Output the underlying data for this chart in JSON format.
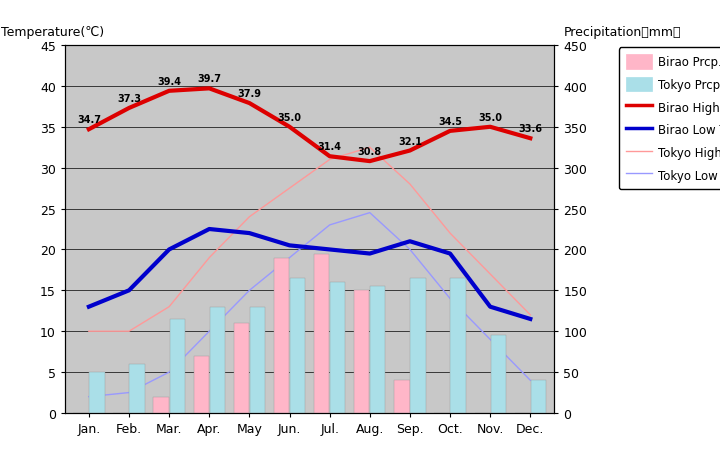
{
  "months": [
    "Jan.",
    "Feb.",
    "Mar.",
    "Apr.",
    "May",
    "Jun.",
    "Jul.",
    "Aug.",
    "Sep.",
    "Oct.",
    "Nov.",
    "Dec."
  ],
  "birao_high": [
    34.7,
    37.3,
    39.4,
    39.7,
    37.9,
    35.0,
    31.4,
    30.8,
    32.1,
    34.5,
    35.0,
    33.6
  ],
  "birao_low": [
    13.0,
    15.0,
    20.0,
    22.5,
    22.0,
    20.5,
    20.0,
    19.5,
    21.0,
    19.5,
    13.0,
    11.5
  ],
  "tokyo_high": [
    10.0,
    10.0,
    13.0,
    19.0,
    24.0,
    27.5,
    31.0,
    32.5,
    28.0,
    22.0,
    17.0,
    12.0
  ],
  "tokyo_low": [
    2.0,
    2.5,
    5.0,
    10.0,
    15.0,
    19.0,
    23.0,
    24.5,
    20.0,
    14.0,
    9.0,
    4.0
  ],
  "birao_prcp": [
    0,
    0,
    20,
    70,
    110,
    190,
    195,
    150,
    40,
    0,
    0,
    0
  ],
  "tokyo_prcp": [
    50,
    60,
    115,
    130,
    130,
    165,
    160,
    155,
    165,
    165,
    95,
    40
  ],
  "bg_color": "#c8c8c8",
  "birao_prcp_color": "#ffb6c8",
  "tokyo_prcp_color": "#aadfe8",
  "birao_high_color": "#dd0000",
  "birao_low_color": "#0000cc",
  "tokyo_high_color": "#ff9999",
  "tokyo_low_color": "#9999ff",
  "title_left": "Temperature(℃)",
  "title_right": "Precipitation（mm）",
  "legend_labels": [
    "Birao Prcp.",
    "Tokyo Prcp.",
    "Birao High Temp.",
    "Birao Low Temp.",
    "Tokyo High Temp.",
    "Tokyo Low Temp."
  ],
  "ylim_temp": [
    0,
    45
  ],
  "ylim_prcp": [
    0,
    450
  ],
  "yticks_temp": [
    0,
    5,
    10,
    15,
    20,
    25,
    30,
    35,
    40,
    45
  ],
  "yticks_prcp": [
    0,
    50,
    100,
    150,
    200,
    250,
    300,
    350,
    400,
    450
  ]
}
